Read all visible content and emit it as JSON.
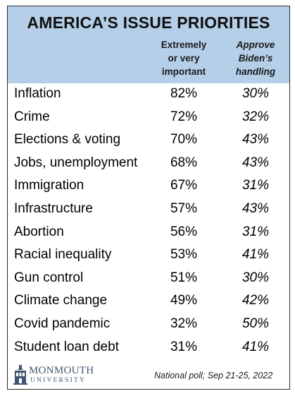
{
  "title": "AMERICA’S ISSUE PRIORITIES",
  "columns": {
    "importance": [
      "Extremely",
      "or very",
      "important"
    ],
    "approval": [
      "Approve",
      "Biden’s",
      "handling"
    ]
  },
  "chart_data": {
    "type": "table",
    "title": "AMERICA’S ISSUE PRIORITIES",
    "columns": [
      "Extremely or very important",
      "Approve Biden’s handling"
    ],
    "rows": [
      {
        "issue": "Inflation",
        "important": "82%",
        "approve": "30%"
      },
      {
        "issue": "Crime",
        "important": "72%",
        "approve": "32%"
      },
      {
        "issue": "Elections & voting",
        "important": "70%",
        "approve": "43%"
      },
      {
        "issue": "Jobs, unemployment",
        "important": "68%",
        "approve": "43%"
      },
      {
        "issue": "Immigration",
        "important": "67%",
        "approve": "31%"
      },
      {
        "issue": "Infrastructure",
        "important": "57%",
        "approve": "43%"
      },
      {
        "issue": "Abortion",
        "important": "56%",
        "approve": "31%"
      },
      {
        "issue": "Racial inequality",
        "important": "53%",
        "approve": "41%"
      },
      {
        "issue": "Gun control",
        "important": "51%",
        "approve": "30%"
      },
      {
        "issue": "Climate change",
        "important": "49%",
        "approve": "42%"
      },
      {
        "issue": "Covid pandemic",
        "important": "32%",
        "approve": "50%"
      },
      {
        "issue": "Student loan debt",
        "important": "31%",
        "approve": "41%"
      }
    ]
  },
  "footer": {
    "logo_line1": "MONMOUTH",
    "logo_line2": "UNIVERSITY",
    "note": "National poll; Sep 21-25, 2022"
  },
  "colors": {
    "header_bg": "#b5cfe8",
    "logo": "#3f5570"
  },
  "icons": [
    "monmouth-building-icon"
  ]
}
